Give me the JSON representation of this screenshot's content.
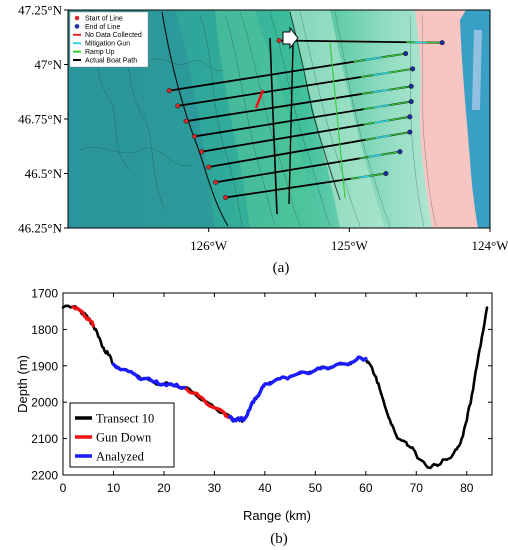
{
  "chart_data": [
    {
      "type": "map",
      "panel_label": "(a)",
      "xlim": [
        -127,
        -124
      ],
      "ylim": [
        46.25,
        47.25
      ],
      "x_ticks": [
        -126,
        -125,
        -124
      ],
      "x_tick_labels": [
        "126°W",
        "125°W",
        "124°W"
      ],
      "y_ticks": [
        46.25,
        46.5,
        46.75,
        47,
        47.25
      ],
      "y_tick_labels": [
        "46.25°N",
        "46.5°N",
        "46.75°N",
        "47°N",
        "47.25°N"
      ],
      "legend": {
        "placement": "top-left",
        "entries": [
          {
            "label": "Start of Line",
            "marker": "dot",
            "color": "#d42a2a"
          },
          {
            "label": "End of Line",
            "marker": "dot",
            "color": "#1c2d9a"
          },
          {
            "label": "No Data Collected",
            "marker": "line",
            "color": "#e52222"
          },
          {
            "label": "Mitigation Gun",
            "marker": "line",
            "color": "#28d6e6"
          },
          {
            "label": "Ramp Up",
            "marker": "line",
            "color": "#33cc33"
          },
          {
            "label": "Actual Boat Path",
            "marker": "line",
            "color": "#000000"
          }
        ]
      },
      "transects": [
        {
          "start": [
            -126.28,
            46.88
          ],
          "end": [
            -124.6,
            47.05
          ]
        },
        {
          "start": [
            -126.22,
            46.81
          ],
          "end": [
            -124.55,
            46.98
          ]
        },
        {
          "start": [
            -126.16,
            46.74
          ],
          "end": [
            -124.56,
            46.9
          ]
        },
        {
          "start": [
            -126.1,
            46.67
          ],
          "end": [
            -124.56,
            46.83
          ]
        },
        {
          "start": [
            -126.05,
            46.6
          ],
          "end": [
            -124.57,
            46.76
          ]
        },
        {
          "start": [
            -126.0,
            46.53
          ],
          "end": [
            -124.57,
            46.69
          ]
        },
        {
          "start": [
            -125.95,
            46.46
          ],
          "end": [
            -124.64,
            46.6
          ]
        },
        {
          "start": [
            -125.88,
            46.39
          ],
          "end": [
            -124.74,
            46.5
          ]
        },
        {
          "start": [
            -125.5,
            47.11
          ],
          "end": [
            -124.34,
            47.1
          ]
        }
      ]
    },
    {
      "type": "line",
      "panel_label": "(b)",
      "xlabel": "Range (km)",
      "ylabel": "Depth (m)",
      "xlim": [
        0,
        85
      ],
      "ylim": [
        2200,
        1700
      ],
      "x_ticks": [
        0,
        10,
        20,
        30,
        40,
        50,
        60,
        70,
        80
      ],
      "y_ticks": [
        1700,
        1800,
        1900,
        2000,
        2100,
        2200
      ],
      "legend_placement": "bottom-left",
      "series": [
        {
          "name": "Transect 10",
          "color": "#000000",
          "x": [
            0,
            1,
            2,
            3,
            4,
            5,
            6,
            7,
            8,
            9,
            10,
            12,
            14,
            16,
            18,
            20,
            22,
            24,
            26,
            28,
            30,
            32,
            33,
            34,
            35,
            36,
            37,
            38,
            39,
            40,
            42,
            44,
            46,
            48,
            50,
            52,
            54,
            56,
            58,
            59,
            60,
            61,
            62,
            63,
            64,
            65,
            66,
            67,
            68,
            69,
            70,
            71,
            72,
            73,
            74,
            75,
            76,
            77,
            78,
            79,
            80,
            81,
            82,
            83,
            84
          ],
          "y": [
            1740,
            1735,
            1738,
            1744,
            1756,
            1770,
            1790,
            1820,
            1850,
            1870,
            1896,
            1910,
            1922,
            1935,
            1945,
            1950,
            1955,
            1960,
            1975,
            1995,
            2015,
            2030,
            2040,
            2048,
            2050,
            2045,
            2020,
            1990,
            1975,
            1950,
            1940,
            1932,
            1925,
            1918,
            1912,
            1905,
            1898,
            1895,
            1885,
            1878,
            1880,
            1900,
            1930,
            1975,
            2020,
            2060,
            2090,
            2105,
            2110,
            2125,
            2145,
            2160,
            2175,
            2178,
            2172,
            2165,
            2158,
            2150,
            2130,
            2100,
            2050,
            1980,
            1900,
            1820,
            1740
          ]
        },
        {
          "name": "Gun Down",
          "color": "#ee1111",
          "segments": [
            {
              "x": [
                2,
                3,
                4,
                5,
                6
              ],
              "y": [
                1738,
                1744,
                1756,
                1770,
                1790
              ]
            },
            {
              "x": [
                24,
                26,
                28,
                30,
                32,
                33
              ],
              "y": [
                1960,
                1975,
                1995,
                2015,
                2030,
                2040
              ]
            }
          ]
        },
        {
          "name": "Analyzed",
          "color": "#1b1bff",
          "segments": [
            {
              "x": [
                10,
                12,
                14,
                16,
                18,
                20,
                22,
                24
              ],
              "y": [
                1896,
                1910,
                1922,
                1935,
                1945,
                1950,
                1955,
                1960
              ]
            },
            {
              "x": [
                33,
                34,
                35,
                36,
                37,
                38,
                39,
                40,
                42,
                44,
                46,
                48,
                50,
                52,
                54,
                56,
                58,
                59,
                60
              ],
              "y": [
                2040,
                2048,
                2050,
                2045,
                2020,
                1990,
                1975,
                1950,
                1940,
                1932,
                1925,
                1918,
                1912,
                1905,
                1898,
                1895,
                1885,
                1878,
                1880
              ]
            }
          ]
        }
      ]
    }
  ]
}
